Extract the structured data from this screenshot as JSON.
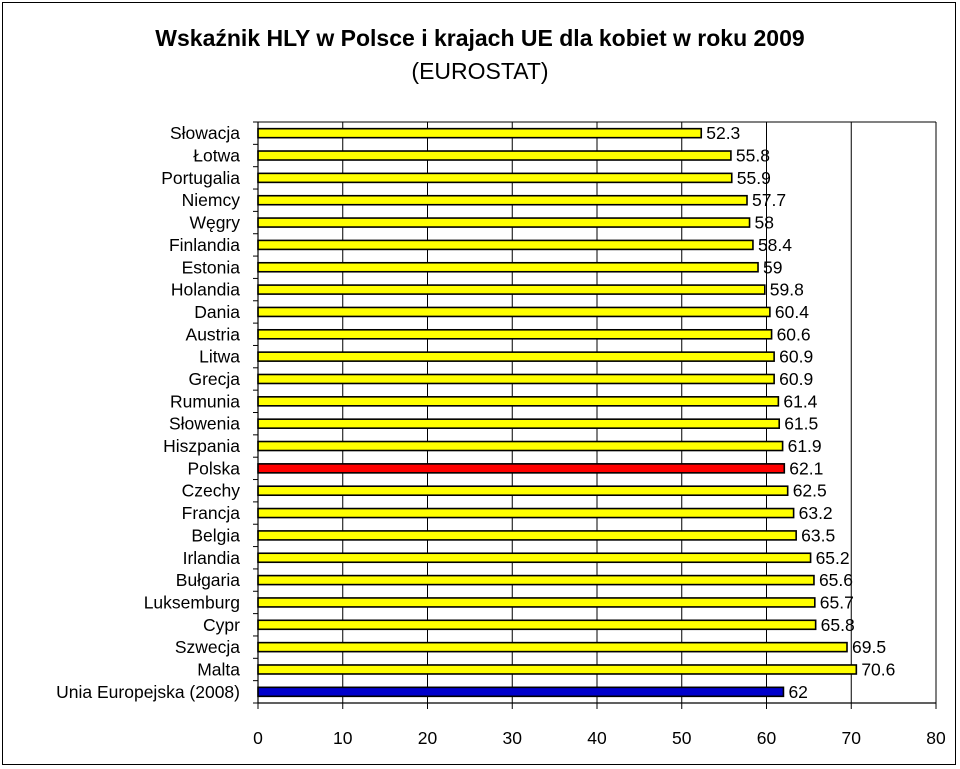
{
  "chart_data": {
    "type": "bar",
    "orientation": "horizontal",
    "title": "Wskaźnik HLY w Polsce i krajach UE dla kobiet w roku 2009",
    "subtitle": "(EUROSTAT)",
    "xlabel": "",
    "ylabel": "",
    "xlim": [
      0,
      80
    ],
    "x_ticks": [
      "0",
      "10",
      "20",
      "30",
      "40",
      "50",
      "60",
      "70",
      "80"
    ],
    "grid": true,
    "categories": [
      "Słowacja",
      "Łotwa",
      "Portugalia",
      "Niemcy",
      "Węgry",
      "Finlandia",
      "Estonia",
      "Holandia",
      "Dania",
      "Austria",
      "Litwa",
      "Grecja",
      "Rumunia",
      "Słowenia",
      "Hiszpania",
      "Polska",
      "Czechy",
      "Francja",
      "Belgia",
      "Irlandia",
      "Bułgaria",
      "Luksemburg",
      "Cypr",
      "Szwecja",
      "Malta",
      "Unia Europejska (2008)"
    ],
    "values": [
      52.3,
      55.8,
      55.9,
      57.7,
      58,
      58.4,
      59,
      59.8,
      60.4,
      60.6,
      60.9,
      60.9,
      61.4,
      61.5,
      61.9,
      62.1,
      62.5,
      63.2,
      63.5,
      65.2,
      65.6,
      65.7,
      65.8,
      69.5,
      70.6,
      62
    ],
    "value_labels": [
      "52.3",
      "55.8",
      "55.9",
      "57.7",
      "58",
      "58.4",
      "59",
      "59.8",
      "60.4",
      "60.6",
      "60.9",
      "60.9",
      "61.4",
      "61.5",
      "61.9",
      "62.1",
      "62.5",
      "63.2",
      "63.5",
      "65.2",
      "65.6",
      "65.7",
      "65.8",
      "69.5",
      "70.6",
      "62"
    ],
    "colors": {
      "default": "#ffff00",
      "Polska": "#ff0000",
      "Unia Europejska (2008)": "#0000cc"
    }
  }
}
